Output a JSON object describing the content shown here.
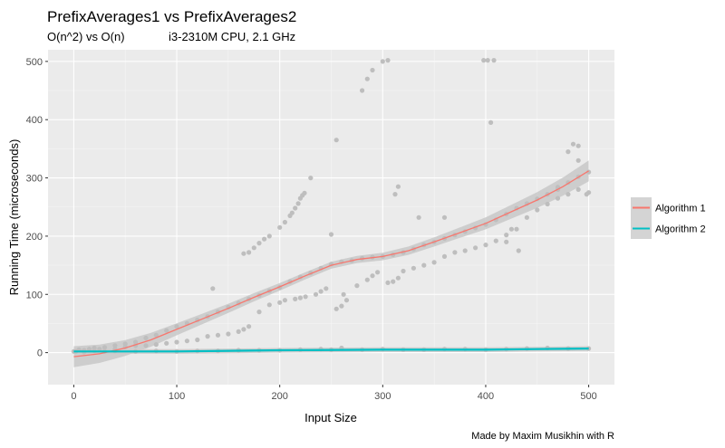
{
  "chart_data": {
    "type": "scatter",
    "title": "PrefixAverages1 vs PrefixAverages2",
    "subtitle_left": "O(n^2) vs O(n)",
    "subtitle_right": "i3-2310M CPU, 2.1 GHz",
    "xlabel": "Input Size",
    "ylabel": "Running Time (microseconds)",
    "caption": "Made by Maxim Musikhin with R",
    "xlim": [
      -25,
      525
    ],
    "ylim": [
      -55,
      520
    ],
    "x_ticks": [
      0,
      100,
      200,
      300,
      400,
      500
    ],
    "y_ticks": [
      0,
      100,
      200,
      300,
      400,
      500
    ],
    "grid": true,
    "legend_position": "right",
    "point_color": "#bebebe",
    "ribbon_color": "#c8c8c8",
    "series": [
      {
        "name": "Algorithm 1",
        "color": "#f8766d",
        "smooth": {
          "x": [
            0,
            25,
            50,
            75,
            100,
            125,
            150,
            175,
            200,
            225,
            250,
            275,
            300,
            325,
            350,
            375,
            400,
            425,
            450,
            475,
            500
          ],
          "y": [
            -7,
            -2,
            8,
            22,
            40,
            58,
            76,
            95,
            113,
            132,
            150,
            160,
            165,
            175,
            190,
            206,
            222,
            242,
            262,
            285,
            312
          ]
        },
        "points": [
          [
            2,
            2
          ],
          [
            5,
            5
          ],
          [
            10,
            4
          ],
          [
            15,
            6
          ],
          [
            20,
            8
          ],
          [
            25,
            6
          ],
          [
            30,
            9
          ],
          [
            40,
            12
          ],
          [
            50,
            15
          ],
          [
            60,
            18
          ],
          [
            70,
            25
          ],
          [
            80,
            30
          ],
          [
            90,
            38
          ],
          [
            100,
            45
          ],
          [
            110,
            50
          ],
          [
            120,
            56
          ],
          [
            130,
            62
          ],
          [
            140,
            70
          ],
          [
            150,
            78
          ],
          [
            160,
            85
          ],
          [
            170,
            92
          ],
          [
            180,
            98
          ],
          [
            190,
            106
          ],
          [
            200,
            112
          ],
          [
            210,
            122
          ],
          [
            220,
            130
          ],
          [
            230,
            137
          ],
          [
            240,
            145
          ],
          [
            250,
            152
          ],
          [
            260,
            156
          ],
          [
            270,
            158
          ],
          [
            280,
            162
          ],
          [
            290,
            164
          ],
          [
            300,
            165
          ],
          [
            310,
            168
          ],
          [
            320,
            172
          ],
          [
            330,
            178
          ],
          [
            340,
            185
          ],
          [
            350,
            190
          ],
          [
            360,
            196
          ],
          [
            370,
            202
          ],
          [
            380,
            208
          ],
          [
            390,
            214
          ],
          [
            400,
            220
          ],
          [
            410,
            228
          ],
          [
            420,
            238
          ],
          [
            430,
            248
          ],
          [
            440,
            256
          ],
          [
            450,
            264
          ],
          [
            460,
            272
          ],
          [
            470,
            284
          ],
          [
            480,
            292
          ],
          [
            490,
            302
          ],
          [
            500,
            310
          ],
          [
            40,
            6
          ],
          [
            50,
            10
          ],
          [
            60,
            12
          ],
          [
            70,
            12
          ],
          [
            80,
            14
          ],
          [
            90,
            16
          ],
          [
            100,
            18
          ],
          [
            110,
            20
          ],
          [
            120,
            22
          ],
          [
            130,
            28
          ],
          [
            140,
            30
          ],
          [
            150,
            32
          ],
          [
            160,
            36
          ],
          [
            165,
            40
          ],
          [
            170,
            45
          ],
          [
            180,
            70
          ],
          [
            190,
            82
          ],
          [
            200,
            86
          ],
          [
            205,
            90
          ],
          [
            215,
            92
          ],
          [
            220,
            94
          ],
          [
            225,
            96
          ],
          [
            235,
            100
          ],
          [
            240,
            105
          ],
          [
            245,
            110
          ],
          [
            255,
            75
          ],
          [
            260,
            80
          ],
          [
            262,
            100
          ],
          [
            265,
            90
          ],
          [
            275,
            115
          ],
          [
            285,
            125
          ],
          [
            290,
            132
          ],
          [
            295,
            138
          ],
          [
            305,
            120
          ],
          [
            310,
            122
          ],
          [
            315,
            128
          ],
          [
            320,
            140
          ],
          [
            330,
            145
          ],
          [
            340,
            150
          ],
          [
            350,
            155
          ],
          [
            360,
            165
          ],
          [
            370,
            172
          ],
          [
            380,
            175
          ],
          [
            390,
            180
          ],
          [
            400,
            185
          ],
          [
            410,
            192
          ],
          [
            420,
            202
          ],
          [
            430,
            212
          ],
          [
            440,
            232
          ],
          [
            450,
            245
          ],
          [
            460,
            255
          ],
          [
            470,
            265
          ],
          [
            480,
            272
          ],
          [
            490,
            280
          ],
          [
            498,
            272
          ],
          [
            500,
            275
          ],
          [
            165,
            170
          ],
          [
            170,
            172
          ],
          [
            175,
            180
          ],
          [
            180,
            188
          ],
          [
            185,
            195
          ],
          [
            190,
            200
          ],
          [
            200,
            215
          ],
          [
            205,
            224
          ],
          [
            210,
            235
          ],
          [
            212,
            240
          ],
          [
            215,
            248
          ],
          [
            218,
            256
          ],
          [
            220,
            265
          ],
          [
            222,
            270
          ],
          [
            224,
            274
          ],
          [
            135,
            110
          ],
          [
            230,
            300
          ],
          [
            250,
            203
          ],
          [
            255,
            365
          ],
          [
            280,
            450
          ],
          [
            285,
            470
          ],
          [
            290,
            485
          ],
          [
            300,
            500
          ],
          [
            305,
            502
          ],
          [
            398,
            502
          ],
          [
            402,
            502
          ],
          [
            408,
            502
          ],
          [
            405,
            395
          ],
          [
            425,
            212
          ],
          [
            420,
            190
          ],
          [
            432,
            175
          ],
          [
            470,
            280
          ],
          [
            480,
            345
          ],
          [
            485,
            358
          ],
          [
            490,
            355
          ],
          [
            360,
            232
          ],
          [
            335,
            232
          ],
          [
            312,
            272
          ],
          [
            315,
            285
          ],
          [
            490,
            330
          ]
        ]
      },
      {
        "name": "Algorithm 2",
        "color": "#00bfc4",
        "smooth": {
          "x": [
            0,
            100,
            200,
            300,
            400,
            450,
            500
          ],
          "y": [
            2,
            2,
            4,
            5,
            5,
            6,
            7
          ]
        },
        "points": [
          [
            0,
            2
          ],
          [
            10,
            1
          ],
          [
            20,
            3
          ],
          [
            30,
            2
          ],
          [
            40,
            3
          ],
          [
            60,
            2
          ],
          [
            80,
            3
          ],
          [
            100,
            2
          ],
          [
            120,
            3
          ],
          [
            140,
            3
          ],
          [
            160,
            4
          ],
          [
            180,
            4
          ],
          [
            200,
            4
          ],
          [
            220,
            5
          ],
          [
            240,
            6
          ],
          [
            250,
            5
          ],
          [
            260,
            8
          ],
          [
            280,
            5
          ],
          [
            300,
            6
          ],
          [
            320,
            5
          ],
          [
            340,
            5
          ],
          [
            360,
            6
          ],
          [
            380,
            6
          ],
          [
            400,
            5
          ],
          [
            420,
            6
          ],
          [
            440,
            7
          ],
          [
            460,
            8
          ],
          [
            480,
            7
          ],
          [
            500,
            7
          ]
        ]
      }
    ]
  }
}
